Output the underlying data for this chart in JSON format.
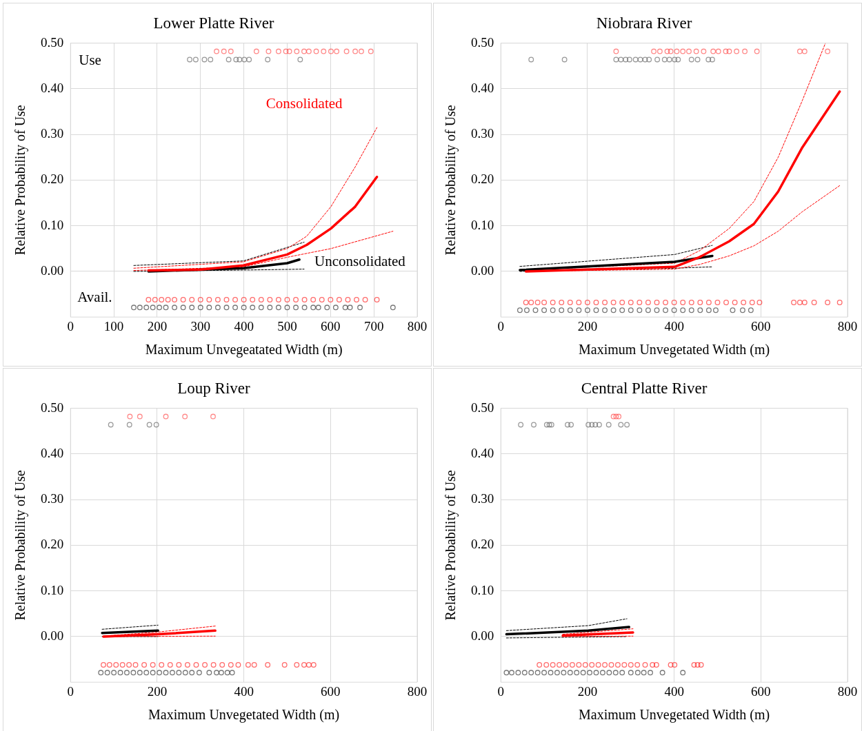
{
  "chart_data": [
    {
      "type": "line",
      "title": "Lower Platte River",
      "xlabel": "Maximum Unvegeatated Width (m)",
      "ylabel": "Relative Probability of Use",
      "grid": true,
      "xlim": [
        0,
        800
      ],
      "ylim": [
        -0.1,
        0.5
      ],
      "xticks": [
        0,
        100,
        200,
        300,
        400,
        500,
        600,
        700,
        800
      ],
      "yticks": [
        {
          "value": 0,
          "label": "0.00"
        },
        {
          "value": 0.1,
          "label": "0.10"
        },
        {
          "value": 0.2,
          "label": "0.20"
        },
        {
          "value": 0.3,
          "label": "0.30"
        },
        {
          "value": 0.4,
          "label": "0.40"
        },
        {
          "value": 0.5,
          "label": "0.50"
        }
      ],
      "annotations": [
        "Use",
        "Avail."
      ],
      "series": [
        {
          "type": "scatter",
          "marker": "circle",
          "color": "#ff5050",
          "x": [
            337,
            354,
            370,
            429,
            457,
            480,
            497,
            505,
            522,
            539,
            550,
            567,
            584,
            601,
            614,
            637,
            657,
            671,
            693
          ],
          "values": [
            0.482,
            0.482,
            0.482,
            0.482,
            0.482,
            0.482,
            0.482,
            0.482,
            0.482,
            0.482,
            0.482,
            0.482,
            0.482,
            0.482,
            0.482,
            0.482,
            0.482,
            0.482,
            0.482
          ]
        },
        {
          "type": "scatter",
          "marker": "circle",
          "color": "#666666",
          "x": [
            275,
            289,
            309,
            323,
            365,
            382,
            390,
            401,
            412,
            455,
            530
          ],
          "values": [
            0.464,
            0.464,
            0.464,
            0.464,
            0.464,
            0.464,
            0.464,
            0.464,
            0.464,
            0.464,
            0.464
          ]
        },
        {
          "type": "scatter",
          "marker": "circle",
          "color": "#ff2020",
          "x": [
            180,
            195,
            210,
            225,
            240,
            260,
            280,
            300,
            320,
            340,
            360,
            380,
            400,
            420,
            440,
            460,
            480,
            500,
            520,
            540,
            560,
            580,
            600,
            620,
            640,
            660,
            680,
            707
          ],
          "values": [
            -0.062,
            -0.062,
            -0.062,
            -0.062,
            -0.062,
            -0.062,
            -0.062,
            -0.062,
            -0.062,
            -0.062,
            -0.062,
            -0.062,
            -0.062,
            -0.062,
            -0.062,
            -0.062,
            -0.062,
            -0.062,
            -0.062,
            -0.062,
            -0.062,
            -0.062,
            -0.062,
            -0.062,
            -0.062,
            -0.062,
            -0.062,
            -0.062
          ]
        },
        {
          "type": "scatter",
          "marker": "circle",
          "color": "#333333",
          "x": [
            146,
            160,
            175,
            190,
            205,
            220,
            240,
            260,
            280,
            300,
            320,
            340,
            360,
            380,
            400,
            420,
            440,
            460,
            480,
            500,
            520,
            540,
            560,
            572,
            592,
            612,
            634,
            645,
            668,
            744
          ],
          "values": [
            -0.079,
            -0.079,
            -0.079,
            -0.079,
            -0.079,
            -0.079,
            -0.079,
            -0.079,
            -0.079,
            -0.079,
            -0.079,
            -0.079,
            -0.079,
            -0.079,
            -0.079,
            -0.079,
            -0.079,
            -0.079,
            -0.079,
            -0.079,
            -0.079,
            -0.079,
            -0.079,
            -0.079,
            -0.079,
            -0.079,
            -0.079,
            -0.079,
            -0.079,
            -0.079
          ]
        },
        {
          "type": "line",
          "line_style": "dashed",
          "marker": "none",
          "color": "#000000",
          "x": [
            146,
            399,
            539
          ],
          "values": [
            0.013,
            0.023,
            0.064
          ]
        },
        {
          "type": "line",
          "line_style": "dashed",
          "marker": "none",
          "color": "#000000",
          "x": [
            146,
            399,
            539
          ],
          "values": [
            0.0,
            0.003,
            0.005
          ]
        },
        {
          "type": "line",
          "line_style": "dashed",
          "marker": "none",
          "color": "#ff0000",
          "x": [
            146,
            399,
            500,
            545,
            601,
            657,
            707
          ],
          "values": [
            0.007,
            0.021,
            0.05,
            0.077,
            0.142,
            0.229,
            0.315
          ]
        },
        {
          "type": "line",
          "line_style": "dashed",
          "marker": "none",
          "color": "#ff0000",
          "x": [
            146,
            399,
            500,
            601,
            744
          ],
          "values": [
            0.002,
            0.01,
            0.031,
            0.05,
            0.088
          ]
        },
        {
          "type": "line",
          "line_style": "solid",
          "marker": "none",
          "color": "#000000",
          "name": "Unconsolidated",
          "x": [
            180,
            399,
            500,
            528
          ],
          "values": [
            0.0,
            0.007,
            0.018,
            0.026
          ]
        },
        {
          "type": "line",
          "line_style": "solid",
          "marker": "none",
          "color": "#ff0000",
          "name": "Consolidated",
          "x": [
            180,
            300,
            399,
            500,
            545,
            601,
            657,
            707
          ],
          "values": [
            0.002,
            0.004,
            0.013,
            0.037,
            0.058,
            0.094,
            0.142,
            0.207
          ]
        }
      ]
    },
    {
      "type": "line",
      "title": "Niobrara River",
      "xlabel": "Maximum Unvegetated Width (m)",
      "ylabel": "Relative Probability of Use",
      "grid": true,
      "xlim": [
        0,
        800
      ],
      "ylim": [
        -0.1,
        0.5
      ],
      "xticks": [
        0,
        200,
        400,
        600,
        800
      ],
      "yticks": [
        {
          "value": 0,
          "label": "0.00"
        },
        {
          "value": 0.1,
          "label": "0.10"
        },
        {
          "value": 0.2,
          "label": "0.20"
        },
        {
          "value": 0.3,
          "label": "0.30"
        },
        {
          "value": 0.4,
          "label": "0.40"
        },
        {
          "value": 0.5,
          "label": "0.50"
        }
      ],
      "series": [
        {
          "type": "scatter",
          "marker": "circle",
          "color": "#ff5050",
          "x": [
            266,
            353,
            367,
            384,
            392,
            406,
            420,
            434,
            451,
            468,
            490,
            502,
            519,
            527,
            544,
            563,
            591,
            690,
            701,
            754
          ],
          "values": [
            0.482,
            0.482,
            0.482,
            0.482,
            0.482,
            0.482,
            0.482,
            0.482,
            0.482,
            0.482,
            0.482,
            0.482,
            0.482,
            0.482,
            0.482,
            0.482,
            0.482,
            0.482,
            0.482,
            0.482
          ]
        },
        {
          "type": "scatter",
          "marker": "circle",
          "color": "#666666",
          "x": [
            70,
            147,
            266,
            277,
            288,
            297,
            311,
            322,
            333,
            342,
            361,
            378,
            389,
            401,
            409,
            440,
            454,
            479,
            488
          ],
          "values": [
            0.464,
            0.464,
            0.464,
            0.464,
            0.464,
            0.464,
            0.464,
            0.464,
            0.464,
            0.464,
            0.464,
            0.464,
            0.464,
            0.464,
            0.464,
            0.464,
            0.464,
            0.464,
            0.464
          ]
        },
        {
          "type": "scatter",
          "marker": "circle",
          "color": "#ff2020",
          "x": [
            58,
            70,
            85,
            100,
            120,
            140,
            160,
            180,
            200,
            220,
            240,
            260,
            280,
            300,
            320,
            340,
            360,
            380,
            400,
            420,
            440,
            460,
            480,
            500,
            520,
            540,
            560,
            580,
            597,
            676,
            690,
            701,
            723,
            754,
            782
          ],
          "values": [
            -0.068,
            -0.068,
            -0.068,
            -0.068,
            -0.068,
            -0.068,
            -0.068,
            -0.068,
            -0.068,
            -0.068,
            -0.068,
            -0.068,
            -0.068,
            -0.068,
            -0.068,
            -0.068,
            -0.068,
            -0.068,
            -0.068,
            -0.068,
            -0.068,
            -0.068,
            -0.068,
            -0.068,
            -0.068,
            -0.068,
            -0.068,
            -0.068,
            -0.068,
            -0.068,
            -0.068,
            -0.068,
            -0.068,
            -0.068,
            -0.068
          ]
        },
        {
          "type": "scatter",
          "marker": "circle",
          "color": "#333333",
          "x": [
            44,
            60,
            80,
            100,
            120,
            140,
            160,
            180,
            200,
            220,
            240,
            260,
            280,
            300,
            320,
            340,
            360,
            380,
            400,
            420,
            440,
            460,
            480,
            496,
            535,
            558,
            577
          ],
          "values": [
            -0.085,
            -0.085,
            -0.085,
            -0.085,
            -0.085,
            -0.085,
            -0.085,
            -0.085,
            -0.085,
            -0.085,
            -0.085,
            -0.085,
            -0.085,
            -0.085,
            -0.085,
            -0.085,
            -0.085,
            -0.085,
            -0.085,
            -0.085,
            -0.085,
            -0.085,
            -0.085,
            -0.085,
            -0.085,
            -0.085,
            -0.085
          ]
        },
        {
          "type": "line",
          "line_style": "dashed",
          "marker": "none",
          "color": "#000000",
          "x": [
            44,
            401,
            488
          ],
          "values": [
            0.011,
            0.037,
            0.057
          ]
        },
        {
          "type": "line",
          "line_style": "dashed",
          "marker": "none",
          "color": "#000000",
          "x": [
            44,
            401,
            488
          ],
          "values": [
            0.0,
            0.007,
            0.01
          ]
        },
        {
          "type": "line",
          "line_style": "dashed",
          "marker": "none",
          "color": "#ff0000",
          "x": [
            58,
            401,
            458,
            527,
            584,
            640,
            696,
            749
          ],
          "values": [
            0.003,
            0.018,
            0.045,
            0.094,
            0.153,
            0.25,
            0.375,
            0.5
          ]
        },
        {
          "type": "line",
          "line_style": "dashed",
          "marker": "none",
          "color": "#ff0000",
          "x": [
            58,
            401,
            458,
            527,
            584,
            640,
            696,
            782
          ],
          "values": [
            0.0,
            0.005,
            0.015,
            0.034,
            0.056,
            0.088,
            0.131,
            0.188
          ]
        },
        {
          "type": "line",
          "line_style": "solid",
          "marker": "none",
          "color": "#000000",
          "x": [
            44,
            401,
            488
          ],
          "values": [
            0.003,
            0.021,
            0.034
          ]
        },
        {
          "type": "line",
          "line_style": "solid",
          "marker": "none",
          "color": "#ff0000",
          "x": [
            58,
            401,
            458,
            527,
            584,
            640,
            696,
            782
          ],
          "values": [
            0.0,
            0.01,
            0.031,
            0.066,
            0.104,
            0.175,
            0.272,
            0.394
          ]
        }
      ]
    },
    {
      "type": "line",
      "title": "Loup River",
      "xlabel": "Maximum Unvegetated Width (m)",
      "ylabel": "Relative Probability of Use",
      "grid": true,
      "xlim": [
        0,
        800
      ],
      "ylim": [
        -0.1,
        0.5
      ],
      "xticks": [
        0,
        200,
        400,
        600,
        800
      ],
      "yticks": [
        {
          "value": 0,
          "label": "0.00"
        },
        {
          "value": 0.1,
          "label": "0.10"
        },
        {
          "value": 0.2,
          "label": "0.20"
        },
        {
          "value": 0.3,
          "label": "0.30"
        },
        {
          "value": 0.4,
          "label": "0.40"
        },
        {
          "value": 0.5,
          "label": "0.50"
        }
      ],
      "series": [
        {
          "type": "scatter",
          "marker": "circle",
          "color": "#ff5050",
          "x": [
            137,
            160,
            220,
            264,
            329
          ],
          "values": [
            0.482,
            0.482,
            0.482,
            0.482,
            0.482
          ]
        },
        {
          "type": "scatter",
          "marker": "circle",
          "color": "#666666",
          "x": [
            93,
            136,
            182,
            198
          ],
          "values": [
            0.464,
            0.464,
            0.464,
            0.464
          ]
        },
        {
          "type": "scatter",
          "marker": "circle",
          "color": "#ff2020",
          "x": [
            76,
            90,
            105,
            120,
            135,
            150,
            170,
            190,
            210,
            230,
            250,
            270,
            290,
            310,
            330,
            350,
            370,
            387,
            410,
            424,
            455,
            494,
            522,
            539,
            550,
            561
          ],
          "values": [
            -0.062,
            -0.062,
            -0.062,
            -0.062,
            -0.062,
            -0.062,
            -0.062,
            -0.062,
            -0.062,
            -0.062,
            -0.062,
            -0.062,
            -0.062,
            -0.062,
            -0.062,
            -0.062,
            -0.062,
            -0.062,
            -0.062,
            -0.062,
            -0.062,
            -0.062,
            -0.062,
            -0.062,
            -0.062,
            -0.062
          ]
        },
        {
          "type": "scatter",
          "marker": "circle",
          "color": "#333333",
          "x": [
            70,
            85,
            100,
            115,
            130,
            145,
            160,
            175,
            190,
            205,
            220,
            235,
            250,
            265,
            280,
            297,
            320,
            337,
            348,
            362,
            373
          ],
          "values": [
            -0.079,
            -0.079,
            -0.079,
            -0.079,
            -0.079,
            -0.079,
            -0.079,
            -0.079,
            -0.079,
            -0.079,
            -0.079,
            -0.079,
            -0.079,
            -0.079,
            -0.079,
            -0.079,
            -0.079,
            -0.079,
            -0.079,
            -0.079,
            -0.079
          ]
        },
        {
          "type": "line",
          "line_style": "dashed",
          "marker": "none",
          "color": "#000000",
          "x": [
            73,
            202
          ],
          "values": [
            0.016,
            0.025
          ]
        },
        {
          "type": "line",
          "line_style": "dashed",
          "marker": "none",
          "color": "#000000",
          "x": [
            73,
            202
          ],
          "values": [
            0.0,
            0.0
          ]
        },
        {
          "type": "line",
          "line_style": "dashed",
          "marker": "none",
          "color": "#ff0000",
          "x": [
            76,
            202,
            334
          ],
          "values": [
            0.001,
            0.01,
            0.023
          ]
        },
        {
          "type": "line",
          "line_style": "dashed",
          "marker": "none",
          "color": "#ff0000",
          "x": [
            76,
            334
          ],
          "values": [
            0.0,
            0.001
          ]
        },
        {
          "type": "line",
          "line_style": "solid",
          "marker": "none",
          "color": "#000000",
          "x": [
            73,
            202
          ],
          "values": [
            0.008,
            0.013
          ]
        },
        {
          "type": "line",
          "line_style": "solid",
          "marker": "none",
          "color": "#ff0000",
          "x": [
            76,
            202,
            334
          ],
          "values": [
            0.0,
            0.005,
            0.013
          ]
        }
      ]
    },
    {
      "type": "line",
      "title": "Central Platte River",
      "xlabel": "Maximum Unvegetated Width (m)",
      "ylabel": "Relative Probability of Use",
      "grid": true,
      "xlim": [
        0,
        800
      ],
      "ylim": [
        -0.1,
        0.5
      ],
      "xticks": [
        0,
        200,
        400,
        600,
        800
      ],
      "yticks": [
        {
          "value": 0,
          "label": "0.00"
        },
        {
          "value": 0.1,
          "label": "0.10"
        },
        {
          "value": 0.2,
          "label": "0.20"
        },
        {
          "value": 0.3,
          "label": "0.30"
        },
        {
          "value": 0.4,
          "label": "0.40"
        },
        {
          "value": 0.5,
          "label": "0.50"
        }
      ],
      "series": [
        {
          "type": "scatter",
          "marker": "circle",
          "color": "#ff5050",
          "x": [
            260,
            266,
            272
          ],
          "values": [
            0.482,
            0.482,
            0.482
          ]
        },
        {
          "type": "scatter",
          "marker": "circle",
          "color": "#666666",
          "x": [
            46,
            76,
            106,
            112,
            117,
            154,
            162,
            202,
            210,
            218,
            227,
            249,
            277,
            291
          ],
          "values": [
            0.464,
            0.464,
            0.464,
            0.464,
            0.464,
            0.464,
            0.464,
            0.464,
            0.464,
            0.464,
            0.464,
            0.464,
            0.464,
            0.464
          ]
        },
        {
          "type": "scatter",
          "marker": "circle",
          "color": "#ff2020",
          "x": [
            89,
            105,
            120,
            135,
            150,
            165,
            180,
            195,
            210,
            225,
            240,
            255,
            270,
            285,
            300,
            315,
            333,
            350,
            359,
            392,
            401,
            446,
            454,
            462
          ],
          "values": [
            -0.062,
            -0.062,
            -0.062,
            -0.062,
            -0.062,
            -0.062,
            -0.062,
            -0.062,
            -0.062,
            -0.062,
            -0.062,
            -0.062,
            -0.062,
            -0.062,
            -0.062,
            -0.062,
            -0.062,
            -0.062,
            -0.062,
            -0.062,
            -0.062,
            -0.062,
            -0.062,
            -0.062
          ]
        },
        {
          "type": "scatter",
          "marker": "circle",
          "color": "#333333",
          "x": [
            13,
            25,
            40,
            55,
            70,
            85,
            100,
            115,
            130,
            145,
            160,
            175,
            190,
            205,
            220,
            235,
            250,
            265,
            280,
            300,
            316,
            330,
            345,
            373,
            420
          ],
          "values": [
            -0.079,
            -0.079,
            -0.079,
            -0.079,
            -0.079,
            -0.079,
            -0.079,
            -0.079,
            -0.079,
            -0.079,
            -0.079,
            -0.079,
            -0.079,
            -0.079,
            -0.079,
            -0.079,
            -0.079,
            -0.079,
            -0.079,
            -0.079,
            -0.079,
            -0.079,
            -0.079,
            -0.079,
            -0.079
          ]
        },
        {
          "type": "line",
          "line_style": "dashed",
          "marker": "none",
          "color": "#000000",
          "x": [
            13,
            202,
            291
          ],
          "values": [
            0.013,
            0.024,
            0.039
          ]
        },
        {
          "type": "line",
          "line_style": "dashed",
          "marker": "none",
          "color": "#000000",
          "x": [
            13,
            291
          ],
          "values": [
            -0.003,
            0.0
          ]
        },
        {
          "type": "line",
          "line_style": "dashed",
          "marker": "none",
          "color": "#ff0000",
          "x": [
            143,
            305
          ],
          "values": [
            0.005,
            0.017
          ]
        },
        {
          "type": "line",
          "line_style": "dashed",
          "marker": "none",
          "color": "#ff0000",
          "x": [
            143,
            305
          ],
          "values": [
            0.0,
            0.001
          ]
        },
        {
          "type": "line",
          "line_style": "solid",
          "marker": "none",
          "color": "#000000",
          "x": [
            13,
            202,
            296
          ],
          "values": [
            0.005,
            0.013,
            0.021
          ]
        },
        {
          "type": "line",
          "line_style": "solid",
          "marker": "none",
          "color": "#ff0000",
          "x": [
            143,
            305
          ],
          "values": [
            0.002,
            0.009
          ]
        }
      ]
    }
  ]
}
